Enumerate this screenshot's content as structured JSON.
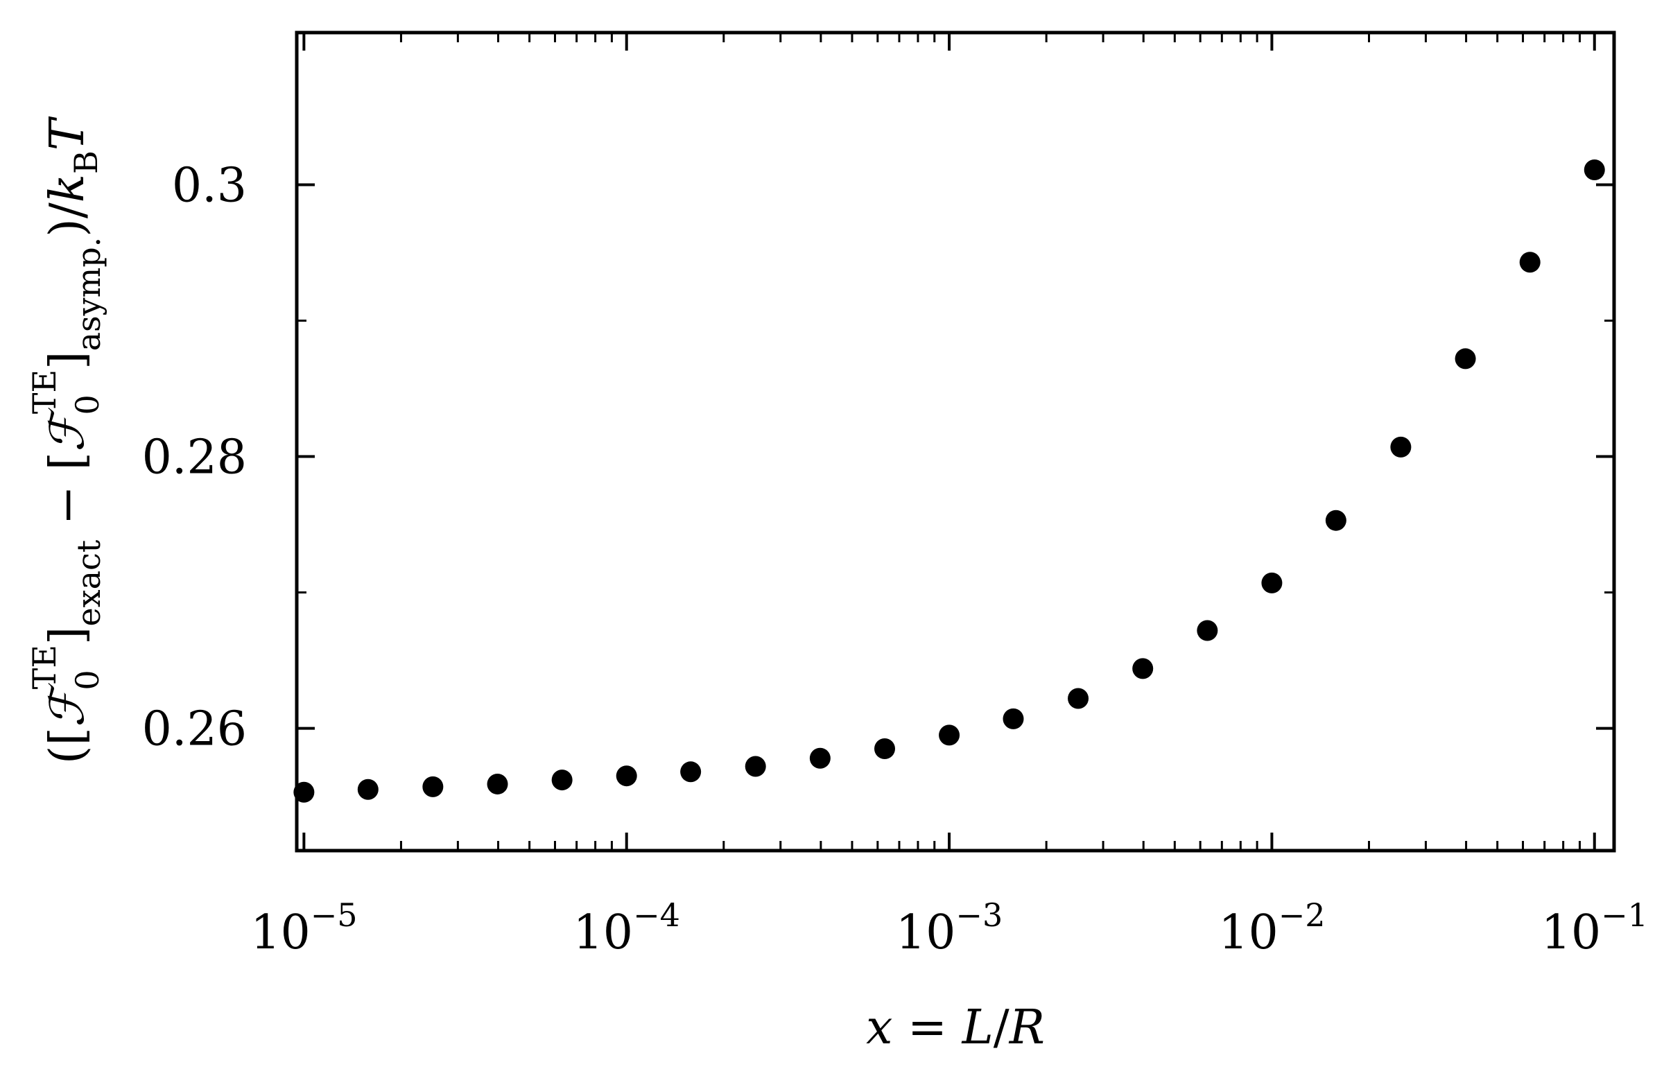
{
  "chart_data": {
    "type": "scatter",
    "xscale": "log",
    "xlim": [
      9.5e-06,
      0.115
    ],
    "ylim": [
      0.251,
      0.3112
    ],
    "xticks": [
      {
        "value": 1e-05,
        "base": "10",
        "exp": "−5"
      },
      {
        "value": 0.0001,
        "base": "10",
        "exp": "−4"
      },
      {
        "value": 0.001,
        "base": "10",
        "exp": "−3"
      },
      {
        "value": 0.01,
        "base": "10",
        "exp": "−2"
      },
      {
        "value": 0.1,
        "base": "10",
        "exp": "−1"
      }
    ],
    "yticks": [
      {
        "value": 0.26,
        "label": "0.26"
      },
      {
        "value": 0.28,
        "label": "0.28"
      },
      {
        "value": 0.3,
        "label": "0.3"
      }
    ],
    "yminor": [
      0.27,
      0.29
    ],
    "grid": false,
    "marker_color": "#000000",
    "x": [
      1e-05,
      1.58e-05,
      2.51e-05,
      3.98e-05,
      6.31e-05,
      0.0001,
      0.000158,
      0.000251,
      0.000398,
      0.000631,
      0.001,
      0.00158,
      0.00251,
      0.00398,
      0.00631,
      0.01,
      0.0158,
      0.0251,
      0.0398,
      0.0631,
      0.1
    ],
    "y": [
      0.2553,
      0.2555,
      0.2557,
      0.2559,
      0.2562,
      0.2565,
      0.2568,
      0.2572,
      0.2578,
      0.2585,
      0.2595,
      0.2607,
      0.2622,
      0.2644,
      0.2672,
      0.2707,
      0.2753,
      0.2807,
      0.2872,
      0.2943,
      0.3011
    ],
    "xlabel": {
      "var": "x",
      "eq": " = ",
      "num": "L",
      "slash": "/",
      "den": "R"
    },
    "ylabel": {
      "open": "([",
      "F": "ℱ",
      "sub0": "0",
      "supTE": "TE",
      "close_exact": "]",
      "exact": "exact",
      "minus": " − [",
      "close_asymp": "]",
      "asymp": "asymp.",
      "tail": ")/",
      "k": "k",
      "B": "B",
      "T": "T"
    }
  }
}
